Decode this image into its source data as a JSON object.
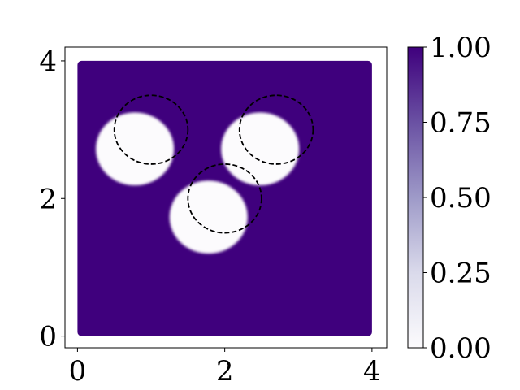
{
  "chart_data": {
    "type": "heatmap",
    "title": "",
    "xlabel": "",
    "ylabel": "",
    "xlim": [
      -0.17,
      4.2
    ],
    "ylim": [
      -0.17,
      4.2
    ],
    "domain": [
      0,
      4
    ],
    "x_ticks": [
      {
        "value": 0,
        "label": "0"
      },
      {
        "value": 2,
        "label": "2"
      },
      {
        "value": 4,
        "label": "4"
      }
    ],
    "y_ticks": [
      {
        "value": 0,
        "label": "0"
      },
      {
        "value": 2,
        "label": "2"
      },
      {
        "value": 4,
        "label": "4"
      }
    ],
    "field_value_outside": 1.0,
    "field_value_inside": 0.0,
    "filled_disks": [
      {
        "cx": 0.78,
        "cy": 2.72,
        "r": 0.53
      },
      {
        "cx": 1.78,
        "cy": 1.73,
        "r": 0.53
      },
      {
        "cx": 2.48,
        "cy": 2.72,
        "r": 0.53
      }
    ],
    "dashed_circles": [
      {
        "cx": 1.0,
        "cy": 3.0,
        "r": 0.5
      },
      {
        "cx": 2.0,
        "cy": 2.0,
        "r": 0.5
      },
      {
        "cx": 2.7,
        "cy": 3.0,
        "r": 0.5
      }
    ],
    "colorbar": {
      "colormap": "Purples",
      "min": 0.0,
      "max": 1.0,
      "ticks": [
        {
          "value": 0.0,
          "label": "0.00"
        },
        {
          "value": 0.25,
          "label": "0.25"
        },
        {
          "value": 0.5,
          "label": "0.50"
        },
        {
          "value": 0.75,
          "label": "0.75"
        },
        {
          "value": 1.0,
          "label": "1.00"
        }
      ]
    },
    "colors": {
      "high": "#3f007d",
      "mid_high": "#6a51a3",
      "mid": "#9e9ac8",
      "mid_low": "#dadaeb",
      "low": "#fcfbfd"
    }
  }
}
